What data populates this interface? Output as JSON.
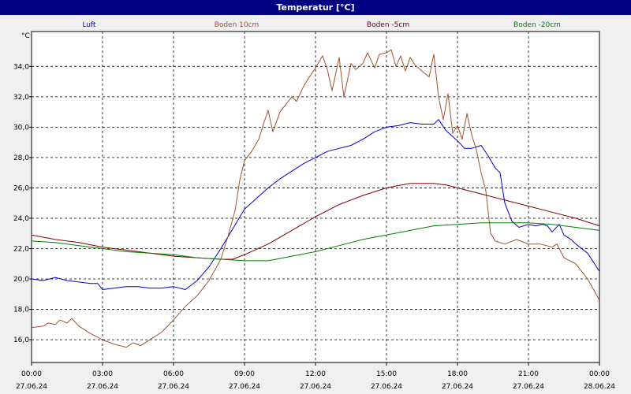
{
  "chart_data": {
    "type": "line",
    "title": "Temperatur [°C]",
    "ylabel": "°C",
    "xlabel": "",
    "xlim": [
      0,
      24
    ],
    "ylim": [
      14.5,
      36.3
    ],
    "grid": true,
    "yticks": [
      {
        "value": 16,
        "label": "16,0"
      },
      {
        "value": 18,
        "label": "18,0"
      },
      {
        "value": 20,
        "label": "20,0"
      },
      {
        "value": 22,
        "label": "22,0"
      },
      {
        "value": 24,
        "label": "24,0"
      },
      {
        "value": 26,
        "label": "26,0"
      },
      {
        "value": 28,
        "label": "28,0"
      },
      {
        "value": 30,
        "label": "30,0"
      },
      {
        "value": 32,
        "label": "32,0"
      },
      {
        "value": 34,
        "label": "34,0"
      }
    ],
    "xticks": [
      {
        "value": 0,
        "time": "00:00",
        "date": "27.06.24"
      },
      {
        "value": 3,
        "time": "03:00",
        "date": "27.06.24"
      },
      {
        "value": 6,
        "time": "06:00",
        "date": "27.06.24"
      },
      {
        "value": 9,
        "time": "09:00",
        "date": "27.06.24"
      },
      {
        "value": 12,
        "time": "12:00",
        "date": "27.06.24"
      },
      {
        "value": 15,
        "time": "15:00",
        "date": "27.06.24"
      },
      {
        "value": 18,
        "time": "18:00",
        "date": "27.06.24"
      },
      {
        "value": 21,
        "time": "21:00",
        "date": "27.06.24"
      },
      {
        "value": 24,
        "time": "00:00",
        "date": "28.06.24"
      }
    ],
    "series": [
      {
        "name": "Luft",
        "color": "#0000cc",
        "x": [
          0,
          0.5,
          1,
          1.5,
          2,
          2.5,
          2.8,
          3,
          3.5,
          4,
          4.5,
          5,
          5.5,
          6,
          6.5,
          7,
          7.5,
          8,
          8.5,
          9,
          9.5,
          10,
          10.5,
          11,
          11.5,
          12,
          12.5,
          13,
          13.5,
          14,
          14.5,
          15,
          15.5,
          16,
          16.5,
          17,
          17.2,
          17.5,
          18,
          18.3,
          18.6,
          19,
          19.3,
          19.6,
          19.8,
          20,
          20.3,
          20.6,
          21,
          21.3,
          21.6,
          21.8,
          22,
          22.3,
          22.5,
          22.8,
          23,
          23.5,
          24
        ],
        "values": [
          20.0,
          19.9,
          20.1,
          19.9,
          19.8,
          19.7,
          19.7,
          19.3,
          19.4,
          19.5,
          19.5,
          19.4,
          19.4,
          19.5,
          19.3,
          19.9,
          20.8,
          22.0,
          23.3,
          24.6,
          25.3,
          26.0,
          26.6,
          27.1,
          27.6,
          28.0,
          28.4,
          28.6,
          28.8,
          29.2,
          29.7,
          30.0,
          30.1,
          30.3,
          30.2,
          30.2,
          30.5,
          29.8,
          29.1,
          28.6,
          28.6,
          28.8,
          28.1,
          27.3,
          27.0,
          25.0,
          23.8,
          23.4,
          23.6,
          23.5,
          23.6,
          23.5,
          23.1,
          23.6,
          22.9,
          22.6,
          22.3,
          21.7,
          20.5
        ]
      },
      {
        "name": "Boden 10cm",
        "color": "#a0522d",
        "x": [
          0,
          0.5,
          0.7,
          1,
          1.2,
          1.5,
          1.7,
          2,
          2.5,
          3,
          3.5,
          4,
          4.3,
          4.6,
          5,
          5.5,
          6,
          6.5,
          7,
          7.5,
          8,
          8.3,
          8.6,
          8.8,
          9,
          9.3,
          9.6,
          9.8,
          10,
          10.2,
          10.5,
          11,
          11.2,
          11.5,
          11.7,
          12,
          12.3,
          12.5,
          12.7,
          13,
          13.2,
          13.5,
          13.7,
          14,
          14.2,
          14.5,
          14.7,
          15,
          15.2,
          15.4,
          15.6,
          15.8,
          16,
          16.2,
          16.5,
          16.8,
          17,
          17.2,
          17.4,
          17.6,
          17.8,
          18,
          18.2,
          18.4,
          18.6,
          18.8,
          19,
          19.2,
          19.4,
          19.6,
          19.8,
          20,
          20.5,
          21,
          21.5,
          22,
          22.2,
          22.5,
          23,
          23.5,
          24
        ],
        "values": [
          16.8,
          16.9,
          17.1,
          17.0,
          17.3,
          17.1,
          17.4,
          16.9,
          16.4,
          16.0,
          15.7,
          15.5,
          15.8,
          15.6,
          16.0,
          16.5,
          17.3,
          18.2,
          18.9,
          19.9,
          21.3,
          22.8,
          24.5,
          26.5,
          27.8,
          28.4,
          29.2,
          30.2,
          31.1,
          29.7,
          31.0,
          32.0,
          31.7,
          32.7,
          33.2,
          33.9,
          34.7,
          33.8,
          32.4,
          34.6,
          32.0,
          34.2,
          33.8,
          34.2,
          34.9,
          33.9,
          34.8,
          34.9,
          35.1,
          34.0,
          34.7,
          33.7,
          34.6,
          34.1,
          33.7,
          33.3,
          34.8,
          32.0,
          30.5,
          32.2,
          29.6,
          30.1,
          29.2,
          30.9,
          29.5,
          28.5,
          27.0,
          25.8,
          23.0,
          22.5,
          22.4,
          22.3,
          22.6,
          22.3,
          22.3,
          22.1,
          22.3,
          21.4,
          21.0,
          20.0,
          18.6
        ]
      },
      {
        "name": "Boden -5cm",
        "color": "#800000",
        "x": [
          0,
          1,
          2,
          3,
          4,
          5,
          6,
          7,
          8,
          8.5,
          9,
          10,
          11,
          12,
          13,
          14,
          15,
          16,
          17,
          17.5,
          18,
          19,
          20,
          21,
          22,
          23,
          24
        ],
        "values": [
          22.9,
          22.6,
          22.4,
          22.1,
          21.9,
          21.7,
          21.5,
          21.4,
          21.3,
          21.3,
          21.6,
          22.3,
          23.2,
          24.1,
          24.9,
          25.5,
          26.0,
          26.3,
          26.3,
          26.2,
          26.0,
          25.6,
          25.2,
          24.8,
          24.4,
          24.0,
          23.5
        ]
      },
      {
        "name": "Boden -20cm",
        "color": "#008000",
        "x": [
          0,
          1,
          2,
          3,
          4,
          5,
          6,
          7,
          8,
          9,
          10,
          11,
          12,
          13,
          14,
          15,
          16,
          17,
          18,
          19,
          20,
          21,
          22,
          23,
          24
        ],
        "values": [
          22.5,
          22.4,
          22.2,
          22.0,
          21.8,
          21.7,
          21.6,
          21.4,
          21.3,
          21.2,
          21.2,
          21.5,
          21.8,
          22.2,
          22.6,
          22.9,
          23.2,
          23.5,
          23.6,
          23.7,
          23.7,
          23.7,
          23.6,
          23.4,
          23.2
        ]
      }
    ]
  }
}
